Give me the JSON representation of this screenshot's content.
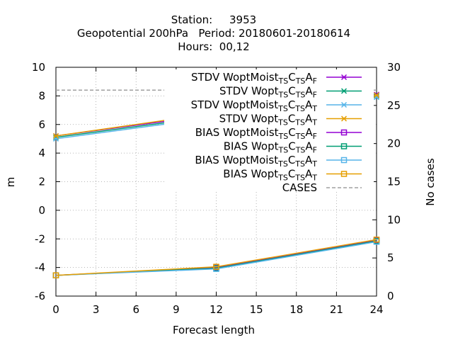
{
  "chart_data": {
    "type": "line",
    "title": [
      "Station:     3953",
      "Geopotential 200hPa   Period: 20180601-20180614",
      "Hours:  00,12"
    ],
    "xlabel": "Forecast length",
    "ylabel": "m",
    "y2label": "No cases",
    "xlim": [
      0,
      24
    ],
    "ylim": [
      -6,
      10
    ],
    "y2lim": [
      0,
      30
    ],
    "xticks": [
      0,
      3,
      6,
      9,
      12,
      15,
      18,
      21,
      24
    ],
    "yticks": [
      -6,
      -4,
      -2,
      0,
      2,
      4,
      6,
      8,
      10
    ],
    "y2ticks": [
      0,
      5,
      10,
      15,
      20,
      25,
      30
    ],
    "grid": true,
    "legend_position": "top-right",
    "x": [
      0,
      12,
      24
    ],
    "series": [
      {
        "label": [
          "STDV WoptMoist",
          "TS",
          "C",
          "TS",
          "A",
          "F"
        ],
        "values": [
          5.2,
          6.7,
          8.1
        ],
        "color": "#9400d3",
        "marker": "x-star",
        "axis": "y1"
      },
      {
        "label": [
          "STDV Wopt",
          "TS",
          "C",
          "TS",
          "A",
          "F"
        ],
        "values": [
          5.1,
          6.6,
          8.0
        ],
        "color": "#009e73",
        "marker": "x-star",
        "axis": "y1"
      },
      {
        "label": [
          "STDV WoptMoist",
          "TS",
          "C",
          "TS",
          "A",
          "T"
        ],
        "values": [
          5.0,
          6.5,
          7.9
        ],
        "color": "#56b4e9",
        "marker": "x-star",
        "axis": "y1"
      },
      {
        "label": [
          "STDV Wopt",
          "TS",
          "C",
          "TS",
          "A",
          "T"
        ],
        "values": [
          5.2,
          6.8,
          8.05
        ],
        "color": "#e69f00",
        "marker": "x-star",
        "axis": "y1"
      },
      {
        "label": [
          "BIAS WoptMoist",
          "TS",
          "C",
          "TS",
          "A",
          "F"
        ],
        "values": [
          -4.55,
          -4.0,
          -2.1
        ],
        "color": "#9400d3",
        "marker": "square",
        "axis": "y1"
      },
      {
        "label": [
          "BIAS Wopt",
          "TS",
          "C",
          "TS",
          "A",
          "F"
        ],
        "values": [
          -4.55,
          -4.05,
          -2.15
        ],
        "color": "#009e73",
        "marker": "square",
        "axis": "y1"
      },
      {
        "label": [
          "BIAS WoptMoist",
          "TS",
          "C",
          "TS",
          "A",
          "T"
        ],
        "values": [
          -4.55,
          -4.1,
          -2.2
        ],
        "color": "#56b4e9",
        "marker": "square",
        "axis": "y1"
      },
      {
        "label": [
          "BIAS Wopt",
          "TS",
          "C",
          "TS",
          "A",
          "T"
        ],
        "values": [
          -4.55,
          -3.95,
          -2.05
        ],
        "color": "#e69f00",
        "marker": "square",
        "axis": "y1"
      },
      {
        "label": [
          "CASES",
          "",
          "",
          "",
          "",
          ""
        ],
        "values": [
          27,
          27,
          27
        ],
        "color": "#a0a0a0",
        "marker": "none",
        "axis": "y2",
        "dashed": true
      }
    ]
  }
}
